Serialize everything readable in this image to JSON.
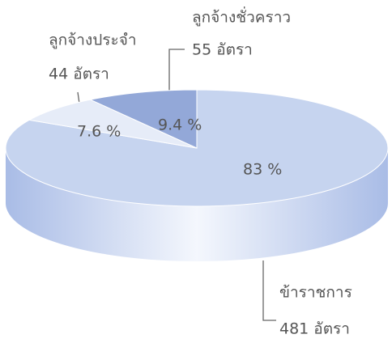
{
  "chart_data": {
    "type": "pie",
    "categories": [
      "ข้าราชการ",
      "ลูกจ้างประจำ",
      "ลูกจ้างชั่วคราว"
    ],
    "values": [
      83,
      7.6,
      9.4
    ],
    "value_labels": [
      "83 %",
      "7.6 %",
      "9.4 %"
    ],
    "counts": [
      481,
      44,
      55
    ],
    "count_labels": [
      "481 อัตรา",
      "44 อัตรา",
      "55 อัตรา"
    ],
    "colors": [
      "#c6d4ef",
      "#e6ecf8",
      "#93a8d8"
    ]
  }
}
